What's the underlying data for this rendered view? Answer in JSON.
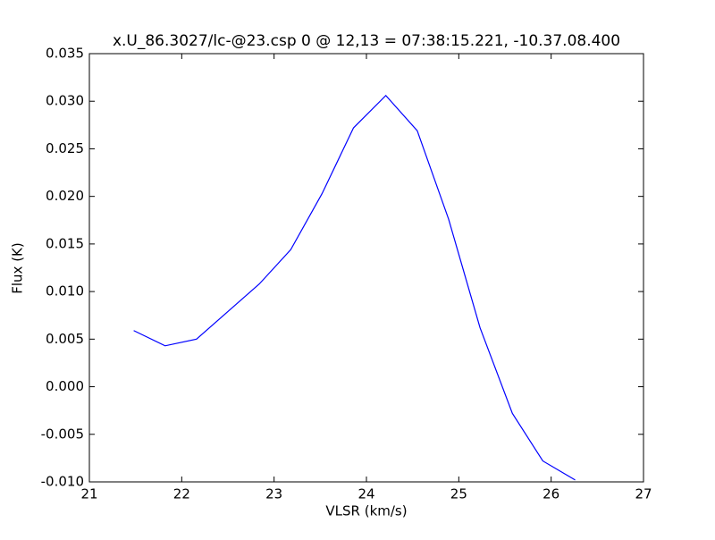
{
  "chart_data": {
    "type": "line",
    "title": "x.U_86.3027/lc-@23.csp 0 @ 12,13 = 07:38:15.221, -10.37.08.400",
    "xlabel": "VLSR (km/s)",
    "ylabel": "Flux (K)",
    "x": [
      21.48,
      21.82,
      22.16,
      22.5,
      22.84,
      23.18,
      23.52,
      23.86,
      24.21,
      24.55,
      24.89,
      25.23,
      25.58,
      25.91,
      26.26
    ],
    "series": [
      {
        "color": "#0000ff",
        "values": [
          0.0059,
          0.0043,
          0.005,
          0.0079,
          0.0108,
          0.0144,
          0.0203,
          0.0272,
          0.0306,
          0.0269,
          0.0176,
          0.0062,
          -0.0028,
          -0.0078,
          -0.0098
        ]
      }
    ],
    "xlim": [
      21,
      27
    ],
    "xticks": [
      21,
      22,
      23,
      24,
      25,
      26,
      27
    ],
    "ylim": [
      -0.01,
      0.035
    ],
    "yticks": [
      {
        "value": -0.01,
        "label": "-0.010"
      },
      -0.005,
      {
        "value": 0,
        "label": "0.000"
      },
      0.005,
      {
        "value": 0.01,
        "label": "0.010"
      },
      0.015,
      {
        "value": 0.02,
        "label": "0.020"
      },
      0.025,
      {
        "value": 0.03,
        "label": "0.030"
      },
      0.035
    ]
  }
}
